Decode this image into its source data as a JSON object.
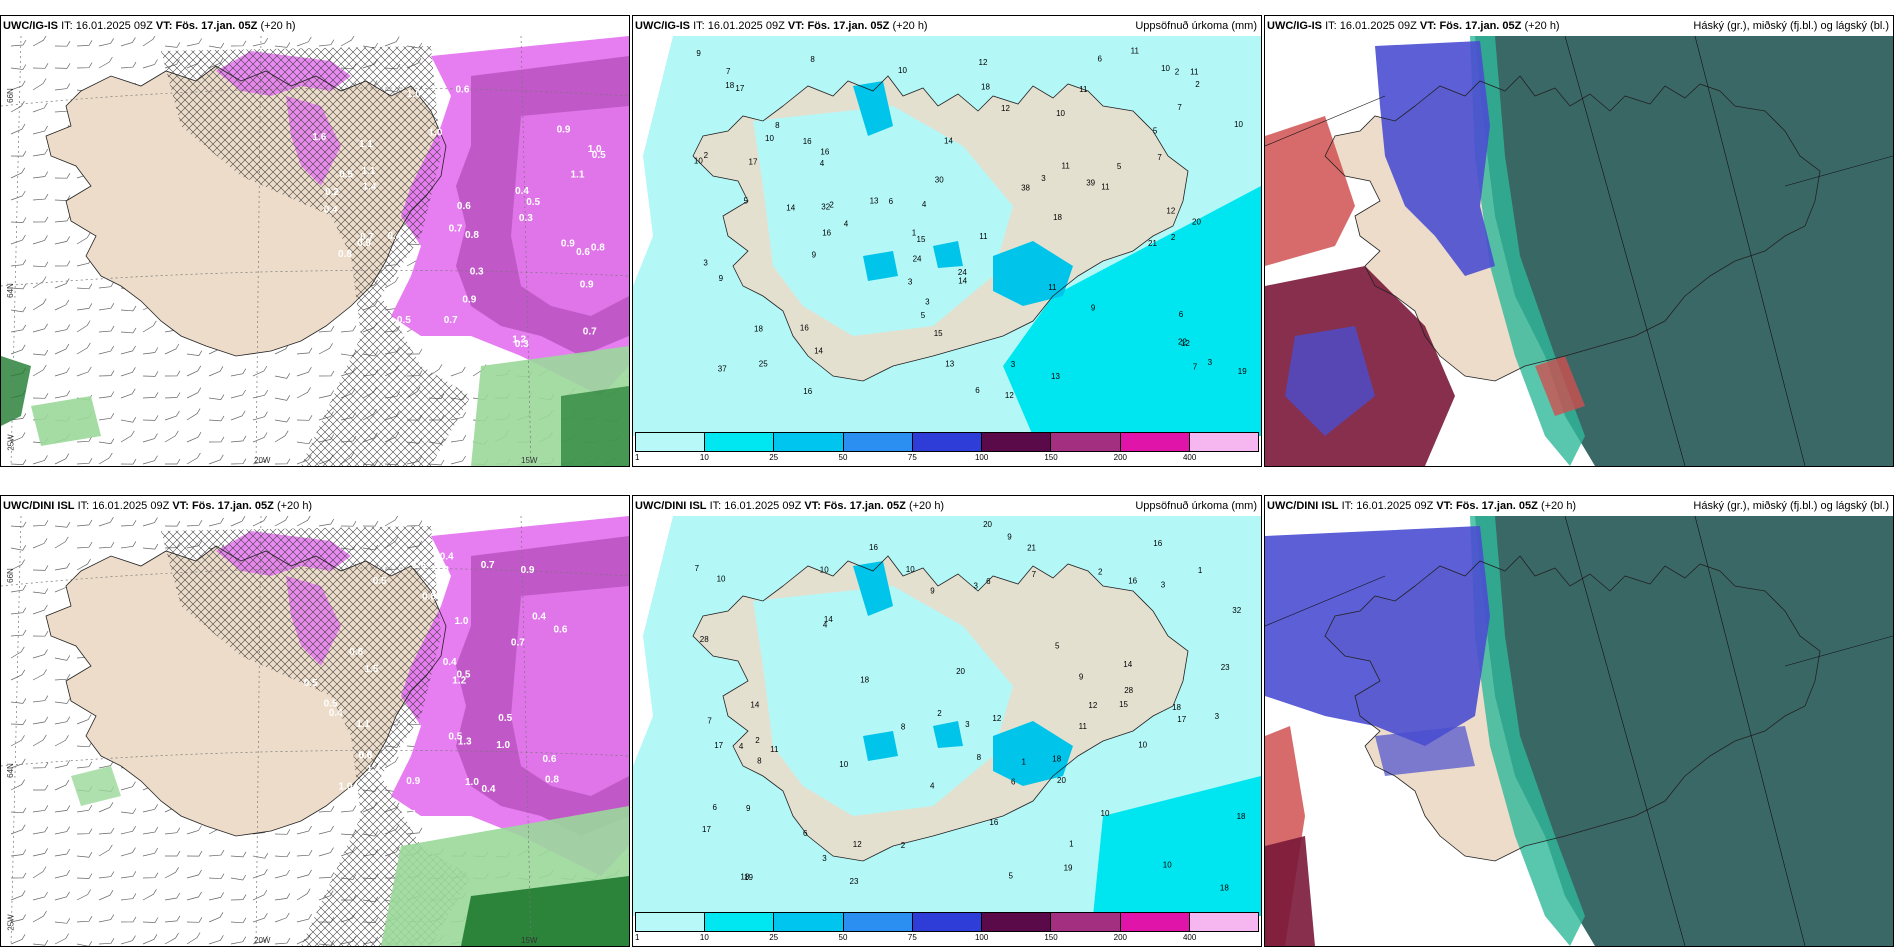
{
  "colors": {
    "land": "#ecdcc9",
    "ocean": "#ffffff",
    "precip_light": "#b4f7f7",
    "precip_mid": "#00e6f0",
    "precip_high": "#00c4ea",
    "snow_pink": "#e67df0",
    "snow_purple": "#a33ba8",
    "cloud_teal": "#2f605f",
    "cloud_blue": "#4a4ed0",
    "cloud_red": "#d05050",
    "cloud_darkred": "#7a1838",
    "green_light": "#9ad89a",
    "green_dark": "#1f7a2f"
  },
  "colorbar": {
    "labels": [
      "1",
      "10",
      "25",
      "50",
      "75",
      "100",
      "150",
      "200",
      "400"
    ],
    "colors": [
      "#b8f8f8",
      "#00e7f2",
      "#00c5ee",
      "#2a8ff0",
      "#2e3dd8",
      "#5a0a48",
      "#a22f80",
      "#e014a8",
      "#f6b6ef"
    ]
  },
  "axis_labels": {
    "lat66": "66N",
    "lat64": "64N",
    "lon25": "25W",
    "lon20": "20W",
    "lon15": "15W"
  },
  "panels": [
    {
      "model": "UWC/IG-IS",
      "it_label": "IT:",
      "it_value": "16.01.2025 09Z",
      "vt_label": "VT:",
      "vt_value": "Fös. 17.jan. 05Z",
      "lead": "(+20 h)",
      "right_title": "",
      "values": [
        "0.9",
        "0.9",
        "0.9",
        "1.1",
        "1.0",
        "1.2",
        "0.5",
        "0.7",
        "0.8",
        "0.7",
        "0.6",
        "0.4",
        "0.5",
        "0.3",
        "0.9",
        "0.5",
        "0.8",
        "1.0",
        "0.7",
        "0.2",
        "0.7",
        "0.6",
        "0.6",
        "0.4",
        "1.1",
        "0.8",
        "0.4",
        "0.5",
        "0.3",
        "0.9",
        "1.4",
        "1.6",
        "1.0",
        "1.1",
        "0.3"
      ]
    },
    {
      "model": "UWC/IG-IS",
      "it_label": "IT:",
      "it_value": "16.01.2025 09Z",
      "vt_label": "VT:",
      "vt_value": "Fös. 17.jan. 05Z",
      "lead": "(+20 h)",
      "right_title": "Uppsöfnuð úrkoma (mm)",
      "values": [
        "2",
        "4",
        "3",
        "10",
        "10",
        "10",
        "12",
        "11",
        "5",
        "2",
        "1",
        "2",
        "3",
        "19",
        "14",
        "13",
        "20",
        "16",
        "15",
        "24",
        "13",
        "12",
        "9",
        "6",
        "4",
        "3",
        "8",
        "12",
        "14",
        "11",
        "10",
        "2",
        "6",
        "9",
        "7",
        "8",
        "16",
        "24",
        "12",
        "11",
        "7",
        "7",
        "18",
        "11",
        "10",
        "12",
        "32",
        "37",
        "38",
        "39",
        "18",
        "14",
        "11",
        "5",
        "9",
        "10",
        "25",
        "30",
        "15",
        "11",
        "11",
        "9",
        "14",
        "7",
        "13",
        "18",
        "16",
        "17",
        "16",
        "17",
        "21",
        "18",
        "22",
        "16",
        "3",
        "2",
        "3",
        "5",
        "4",
        "6",
        "3",
        "5",
        "6"
      ]
    },
    {
      "model": "UWC/IG-IS",
      "it_label": "IT:",
      "it_value": "16.01.2025 09Z",
      "vt_label": "VT:",
      "vt_value": "Fös. 17.jan. 05Z",
      "lead": "(+20 h)",
      "right_title": "Háský (gr.), miðský (fj.bl.) og lágský (bl.)",
      "values": []
    },
    {
      "model": "UWC/DINI ISL",
      "it_label": "IT:",
      "it_value": "16.01.2025 09Z",
      "vt_label": "VT:",
      "vt_value": "Fös. 17.jan. 05Z",
      "lead": "(+20 h)",
      "right_title": "",
      "values": [
        "1.0",
        "0.9",
        "0.5",
        "0.4",
        "1.3",
        "1.5",
        "1.1",
        "0.8",
        "0.6",
        "0.7",
        "0.5",
        "0.4",
        "1.0",
        "1.2",
        "1.6",
        "1.6",
        "0.8",
        "0.5",
        "0.6",
        "0.7",
        "0.4",
        "1.3",
        "0.8",
        "0.5",
        "0.4",
        "0.9",
        "0.4",
        "0.7",
        "1.0",
        "0.5",
        "0.8",
        "1.4",
        "1.0",
        "0.5",
        "0.6"
      ]
    },
    {
      "model": "UWC/DINI ISL",
      "it_label": "IT:",
      "it_value": "16.01.2025 09Z",
      "vt_label": "VT:",
      "vt_value": "Fös. 17.jan. 05Z",
      "lead": "(+20 h)",
      "right_title": "Uppsöfnuð úrkoma (mm)",
      "values": [
        "2",
        "9",
        "10",
        "7",
        "3",
        "17",
        "15",
        "16",
        "10",
        "19",
        "18",
        "20",
        "12",
        "14",
        "17",
        "11",
        "1",
        "3",
        "5",
        "2",
        "4",
        "3",
        "6",
        "2",
        "12",
        "16",
        "10",
        "11",
        "9",
        "8",
        "7",
        "6",
        "14",
        "18",
        "23",
        "20",
        "16",
        "10",
        "12",
        "18",
        "28",
        "28",
        "32",
        "8",
        "10",
        "10",
        "9",
        "14",
        "21",
        "23",
        "16",
        "5",
        "18",
        "18",
        "18",
        "17",
        "19",
        "20",
        "9",
        "6",
        "4",
        "2",
        "1",
        "3",
        "8",
        "7",
        "10",
        "6",
        "4",
        "3",
        "1"
      ]
    },
    {
      "model": "UWC/DINI ISL",
      "it_label": "IT:",
      "it_value": "16.01.2025 09Z",
      "vt_label": "VT:",
      "vt_value": "Fös. 17.jan. 05Z",
      "lead": "(+20 h)",
      "right_title": "Háský (gr.), miðský (fj.bl.) og lágský (bl.)",
      "values": []
    }
  ]
}
